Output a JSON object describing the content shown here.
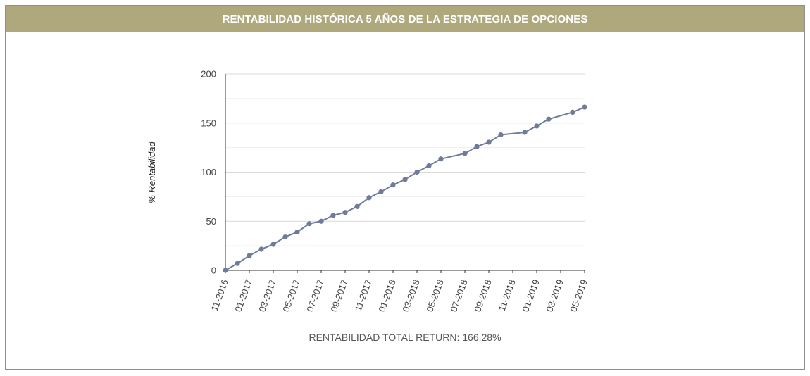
{
  "header": {
    "title": "RENTABILIDAD HISTÓRICA 5 AÑOS DE LA ESTRATEGIA DE OPCIONES"
  },
  "footer": {
    "total_return": "RENTABILIDAD TOTAL RETURN: 166.28%"
  },
  "colors": {
    "header_bg": "#aea87c",
    "line": "#6f7b9a",
    "grid": "#d9d9d9",
    "axis": "#333333"
  },
  "chart_data": {
    "type": "line",
    "title": "",
    "xlabel": "",
    "ylabel": "% Rentabilidad",
    "ylim": [
      0,
      200
    ],
    "yticks": [
      0,
      50,
      100,
      150,
      200
    ],
    "grid": true,
    "x_tick_labels": [
      "11-2016",
      "01-2017",
      "03-2017",
      "05-2017",
      "07-2017",
      "09-2017",
      "11-2017",
      "01-2018",
      "03-2018",
      "05-2018",
      "07-2018",
      "09-2018",
      "11-2018",
      "01-2019",
      "03-2019",
      "05-2019"
    ],
    "x": [
      "11-2016",
      "12-2016",
      "01-2017",
      "02-2017",
      "03-2017",
      "04-2017",
      "05-2017",
      "06-2017",
      "07-2017",
      "08-2017",
      "09-2017",
      "10-2017",
      "11-2017",
      "12-2017",
      "01-2018",
      "02-2018",
      "03-2018",
      "04-2018",
      "05-2018",
      "07-2018",
      "08-2018",
      "09-2018",
      "10-2018",
      "12-2018",
      "01-2019",
      "02-2019",
      "04-2019",
      "05-2019"
    ],
    "series": [
      {
        "values": [
          0,
          7,
          15,
          21.5,
          26.5,
          34,
          39,
          47.5,
          50,
          56,
          59,
          65,
          74,
          80,
          87,
          92.5,
          100,
          106.5,
          113.5,
          119,
          126,
          130.5,
          138,
          140.5,
          147,
          154,
          161,
          166.28
        ]
      }
    ]
  }
}
